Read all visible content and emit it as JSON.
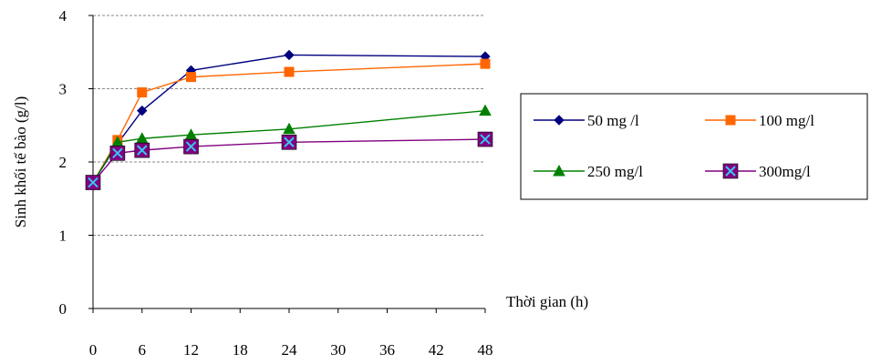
{
  "chart_data": {
    "type": "line",
    "xlabel": "Thời gian (h)",
    "ylabel": "Sinh khối tế bào (g/l)",
    "x_ticks": [
      0,
      6,
      12,
      18,
      24,
      30,
      36,
      42,
      48
    ],
    "y_ticks": [
      0,
      1,
      2,
      3,
      4
    ],
    "xlim": [
      0,
      48
    ],
    "ylim": [
      0,
      4
    ],
    "grid": "horizontal dashed",
    "legend_position": "right",
    "series": [
      {
        "name": "50 mg /l",
        "color": "#000080",
        "marker": "diamond",
        "x": [
          0,
          3,
          6,
          12,
          24,
          48
        ],
        "y": [
          1.72,
          2.25,
          2.7,
          3.25,
          3.46,
          3.44
        ]
      },
      {
        "name": "100 mg/l",
        "color": "#ff6600",
        "marker": "square",
        "x": [
          0,
          3,
          6,
          12,
          24,
          48
        ],
        "y": [
          1.72,
          2.3,
          2.95,
          3.16,
          3.23,
          3.34
        ]
      },
      {
        "name": "250 mg/l",
        "color": "#008000",
        "marker": "triangle",
        "x": [
          0,
          3,
          6,
          12,
          24,
          48
        ],
        "y": [
          1.72,
          2.27,
          2.32,
          2.37,
          2.45,
          2.7
        ]
      },
      {
        "name": "300mg/l",
        "color": "#800080",
        "marker": "x-square",
        "x": [
          0,
          3,
          6,
          12,
          24,
          48
        ],
        "y": [
          1.72,
          2.12,
          2.16,
          2.21,
          2.27,
          2.31
        ]
      }
    ]
  }
}
